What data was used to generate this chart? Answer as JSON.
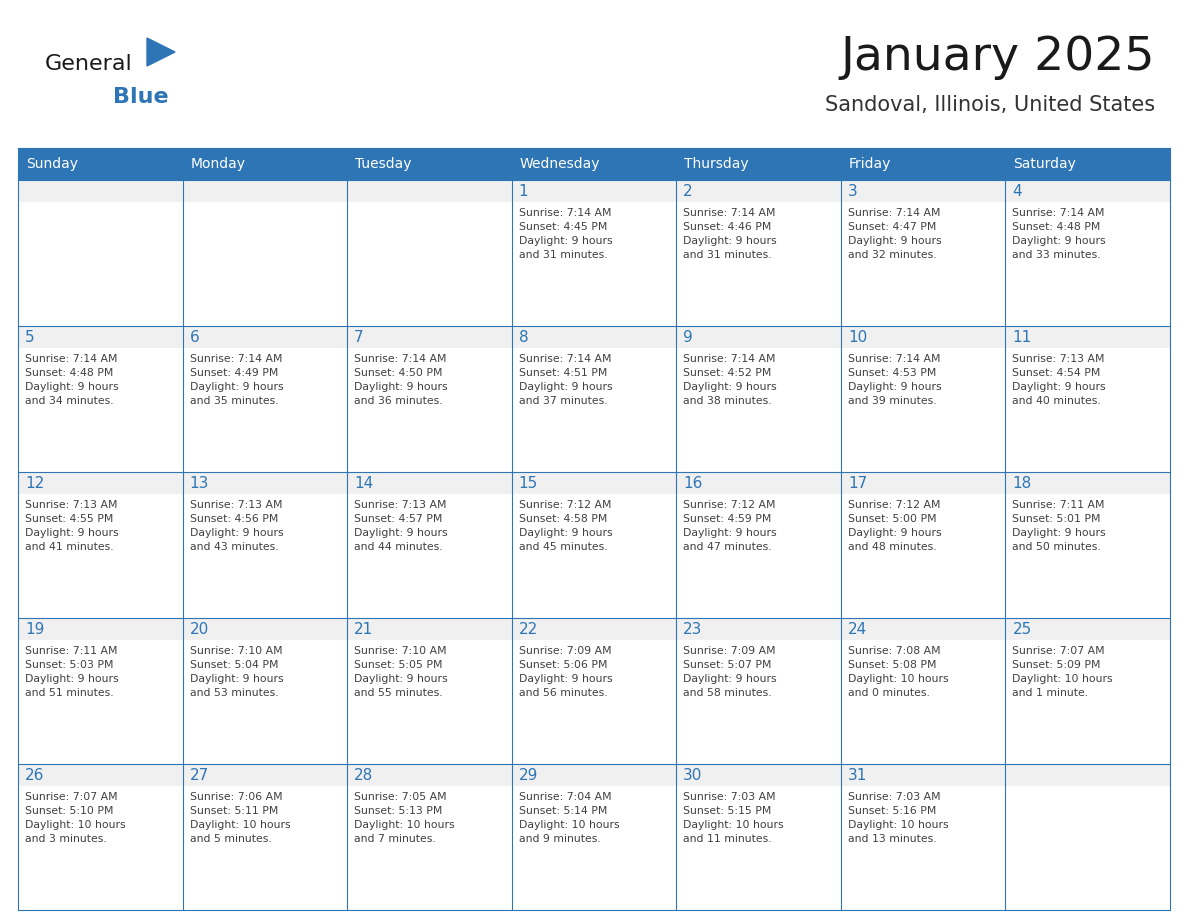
{
  "title": "January 2025",
  "subtitle": "Sandoval, Illinois, United States",
  "days_of_week": [
    "Sunday",
    "Monday",
    "Tuesday",
    "Wednesday",
    "Thursday",
    "Friday",
    "Saturday"
  ],
  "header_bg": "#2E75B6",
  "header_text_color": "#ffffff",
  "cell_bg": "#ffffff",
  "cell_top_bg": "#f0f0f0",
  "cell_border_color": "#2E75B6",
  "day_number_color": "#2E75B6",
  "info_text_color": "#404040",
  "title_color": "#1a1a1a",
  "subtitle_color": "#333333",
  "logo_general_color": "#1a1a1a",
  "logo_blue_color": "#2E75B6",
  "weeks": [
    [
      {
        "day": null,
        "info": ""
      },
      {
        "day": null,
        "info": ""
      },
      {
        "day": null,
        "info": ""
      },
      {
        "day": 1,
        "info": "Sunrise: 7:14 AM\nSunset: 4:45 PM\nDaylight: 9 hours\nand 31 minutes."
      },
      {
        "day": 2,
        "info": "Sunrise: 7:14 AM\nSunset: 4:46 PM\nDaylight: 9 hours\nand 31 minutes."
      },
      {
        "day": 3,
        "info": "Sunrise: 7:14 AM\nSunset: 4:47 PM\nDaylight: 9 hours\nand 32 minutes."
      },
      {
        "day": 4,
        "info": "Sunrise: 7:14 AM\nSunset: 4:48 PM\nDaylight: 9 hours\nand 33 minutes."
      }
    ],
    [
      {
        "day": 5,
        "info": "Sunrise: 7:14 AM\nSunset: 4:48 PM\nDaylight: 9 hours\nand 34 minutes."
      },
      {
        "day": 6,
        "info": "Sunrise: 7:14 AM\nSunset: 4:49 PM\nDaylight: 9 hours\nand 35 minutes."
      },
      {
        "day": 7,
        "info": "Sunrise: 7:14 AM\nSunset: 4:50 PM\nDaylight: 9 hours\nand 36 minutes."
      },
      {
        "day": 8,
        "info": "Sunrise: 7:14 AM\nSunset: 4:51 PM\nDaylight: 9 hours\nand 37 minutes."
      },
      {
        "day": 9,
        "info": "Sunrise: 7:14 AM\nSunset: 4:52 PM\nDaylight: 9 hours\nand 38 minutes."
      },
      {
        "day": 10,
        "info": "Sunrise: 7:14 AM\nSunset: 4:53 PM\nDaylight: 9 hours\nand 39 minutes."
      },
      {
        "day": 11,
        "info": "Sunrise: 7:13 AM\nSunset: 4:54 PM\nDaylight: 9 hours\nand 40 minutes."
      }
    ],
    [
      {
        "day": 12,
        "info": "Sunrise: 7:13 AM\nSunset: 4:55 PM\nDaylight: 9 hours\nand 41 minutes."
      },
      {
        "day": 13,
        "info": "Sunrise: 7:13 AM\nSunset: 4:56 PM\nDaylight: 9 hours\nand 43 minutes."
      },
      {
        "day": 14,
        "info": "Sunrise: 7:13 AM\nSunset: 4:57 PM\nDaylight: 9 hours\nand 44 minutes."
      },
      {
        "day": 15,
        "info": "Sunrise: 7:12 AM\nSunset: 4:58 PM\nDaylight: 9 hours\nand 45 minutes."
      },
      {
        "day": 16,
        "info": "Sunrise: 7:12 AM\nSunset: 4:59 PM\nDaylight: 9 hours\nand 47 minutes."
      },
      {
        "day": 17,
        "info": "Sunrise: 7:12 AM\nSunset: 5:00 PM\nDaylight: 9 hours\nand 48 minutes."
      },
      {
        "day": 18,
        "info": "Sunrise: 7:11 AM\nSunset: 5:01 PM\nDaylight: 9 hours\nand 50 minutes."
      }
    ],
    [
      {
        "day": 19,
        "info": "Sunrise: 7:11 AM\nSunset: 5:03 PM\nDaylight: 9 hours\nand 51 minutes."
      },
      {
        "day": 20,
        "info": "Sunrise: 7:10 AM\nSunset: 5:04 PM\nDaylight: 9 hours\nand 53 minutes."
      },
      {
        "day": 21,
        "info": "Sunrise: 7:10 AM\nSunset: 5:05 PM\nDaylight: 9 hours\nand 55 minutes."
      },
      {
        "day": 22,
        "info": "Sunrise: 7:09 AM\nSunset: 5:06 PM\nDaylight: 9 hours\nand 56 minutes."
      },
      {
        "day": 23,
        "info": "Sunrise: 7:09 AM\nSunset: 5:07 PM\nDaylight: 9 hours\nand 58 minutes."
      },
      {
        "day": 24,
        "info": "Sunrise: 7:08 AM\nSunset: 5:08 PM\nDaylight: 10 hours\nand 0 minutes."
      },
      {
        "day": 25,
        "info": "Sunrise: 7:07 AM\nSunset: 5:09 PM\nDaylight: 10 hours\nand 1 minute."
      }
    ],
    [
      {
        "day": 26,
        "info": "Sunrise: 7:07 AM\nSunset: 5:10 PM\nDaylight: 10 hours\nand 3 minutes."
      },
      {
        "day": 27,
        "info": "Sunrise: 7:06 AM\nSunset: 5:11 PM\nDaylight: 10 hours\nand 5 minutes."
      },
      {
        "day": 28,
        "info": "Sunrise: 7:05 AM\nSunset: 5:13 PM\nDaylight: 10 hours\nand 7 minutes."
      },
      {
        "day": 29,
        "info": "Sunrise: 7:04 AM\nSunset: 5:14 PM\nDaylight: 10 hours\nand 9 minutes."
      },
      {
        "day": 30,
        "info": "Sunrise: 7:03 AM\nSunset: 5:15 PM\nDaylight: 10 hours\nand 11 minutes."
      },
      {
        "day": 31,
        "info": "Sunrise: 7:03 AM\nSunset: 5:16 PM\nDaylight: 10 hours\nand 13 minutes."
      },
      {
        "day": null,
        "info": ""
      }
    ]
  ],
  "fig_width": 11.88,
  "fig_height": 9.18,
  "dpi": 100
}
